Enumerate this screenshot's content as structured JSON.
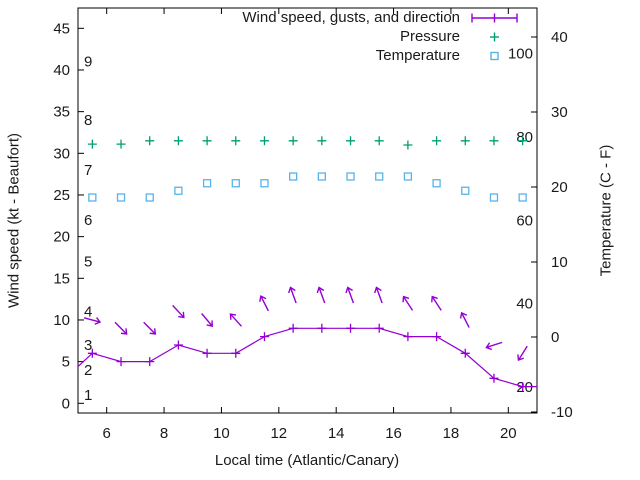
{
  "colors": {
    "wind": "#9400d3",
    "pressure": "#009e73",
    "temperature": "#56b4e9",
    "axis": "#000000",
    "text": "#1a1a1a"
  },
  "legend": {
    "wind_label": "Wind speed, gusts, and direction",
    "pressure_label": "Pressure",
    "temperature_label": "Temperature"
  },
  "chart_data": {
    "type": "line",
    "x_hours": [
      5.5,
      6.5,
      7.5,
      8.5,
      9.5,
      10.5,
      11.5,
      12.5,
      13.5,
      14.5,
      15.5,
      16.5,
      17.5,
      18.5,
      19.5,
      20.5
    ],
    "series": [
      {
        "name": "Wind speed, gusts, and direction",
        "style": "line-with-plus-markers-and-direction-arrows",
        "color_key": "wind",
        "wind_kt": [
          6,
          5,
          5,
          7,
          6,
          6,
          8,
          9,
          9,
          9,
          9,
          8,
          8,
          6,
          3,
          2
        ],
        "gust_kt": [
          10,
          9,
          9,
          11,
          10,
          10,
          12,
          13,
          13,
          13,
          13,
          12,
          12,
          10,
          7,
          6
        ],
        "direction_to_deg": [
          105,
          135,
          135,
          137,
          140,
          318,
          333,
          340,
          340,
          340,
          340,
          327,
          327,
          333,
          252,
          212
        ],
        "edge_enter": {
          "hour": 5.0,
          "kt": 4.4
        },
        "edge_exit": {
          "hour": 21.0,
          "kt": 2
        }
      },
      {
        "name": "Pressure",
        "style": "plus-points",
        "color_key": "pressure",
        "plotted_left_scale_kt": [
          31.1,
          31.1,
          31.5,
          31.5,
          31.5,
          31.5,
          31.5,
          31.5,
          31.5,
          31.5,
          31.5,
          31.0,
          31.5,
          31.5,
          31.5,
          31.5
        ]
      },
      {
        "name": "Temperature",
        "style": "open-square-points",
        "color_key": "temperature",
        "temp_c": [
          18.6,
          18.6,
          18.6,
          19.5,
          20.5,
          20.5,
          20.5,
          21.4,
          21.4,
          21.4,
          21.4,
          21.4,
          20.5,
          19.5,
          18.6,
          18.6
        ]
      }
    ],
    "axes": {
      "x": {
        "label": "Local time (Atlantic/Canary)",
        "range": [
          5,
          21
        ],
        "ticks": [
          6,
          8,
          10,
          12,
          14,
          16,
          18,
          20
        ]
      },
      "y_left": {
        "label": "Wind speed (kt - Beaufort)",
        "ticks": [
          0,
          5,
          10,
          15,
          20,
          25,
          30,
          35,
          40,
          45
        ]
      },
      "y_right": {
        "label": "Temperature (C - F)",
        "ticks": [
          -10,
          0,
          10,
          20,
          30,
          40
        ]
      },
      "beaufort_inner_labels": [
        {
          "label": "1",
          "kt": 1
        },
        {
          "label": "2",
          "kt": 4
        },
        {
          "label": "3",
          "kt": 7
        },
        {
          "label": "4",
          "kt": 11
        },
        {
          "label": "5",
          "kt": 17
        },
        {
          "label": "6",
          "kt": 22
        },
        {
          "label": "7",
          "kt": 28
        },
        {
          "label": "8",
          "kt": 34
        },
        {
          "label": "9",
          "kt": 41
        }
      ],
      "fahrenheit_inner_labels": [
        {
          "label": "20",
          "f": 20
        },
        {
          "label": "40",
          "f": 40
        },
        {
          "label": "60",
          "f": 60
        },
        {
          "label": "80",
          "f": 80
        },
        {
          "label": "100",
          "f": 100
        }
      ],
      "grid": "off",
      "legend_position": "top-right-inside"
    }
  }
}
